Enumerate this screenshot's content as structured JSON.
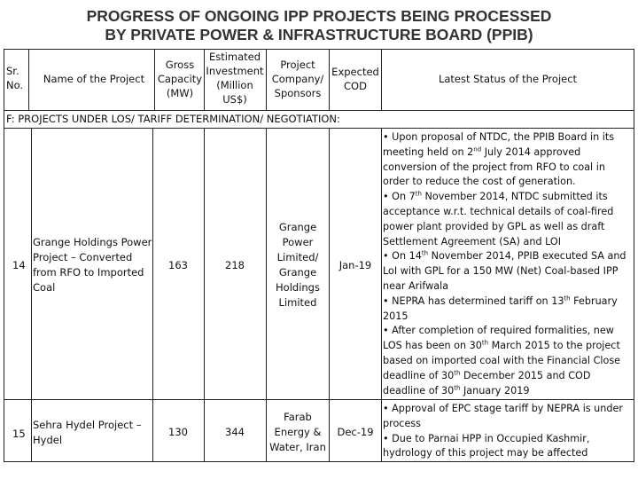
{
  "title": {
    "line1": "PROGRESS OF ONGOING IPP PROJECTS BEING PROCESSED",
    "line2": "BY PRIVATE POWER & INFRASTRUCTURE BOARD (PPIB)"
  },
  "headers": {
    "sr_no": "Sr. No.",
    "name": "Name of the Project",
    "capacity": "Gross Capacity (MW)",
    "investment": "Estimated Investment (Million US$)",
    "sponsors": "Project Company/ Sponsors",
    "cod": "Expected COD",
    "status": "Latest Status of the Project"
  },
  "section_label": "F: PROJECTS UNDER LOS/ TARIFF DETERMINATION/ NEGOTIATION:",
  "rows": [
    {
      "sr": "14",
      "name": "Grange Holdings Power Project – Converted from RFO to Imported Coal",
      "capacity": "163",
      "investment": "218",
      "sponsors": "Grange Power Limited/ Grange Holdings Limited",
      "cod": "Jan-19",
      "status": [
        "• Upon proposal of NTDC, the PPIB Board in its meeting held on 2nd July 2014 approved conversion of the project from RFO to coal in order to reduce the cost of generation.",
        "• On 7th November 2014, NTDC submitted its acceptance w.r.t. technical details of coal-fired power plant provided by GPL as well as draft Settlement Agreement (SA) and LOI",
        "• On 14th November 2014, PPIB executed SA and LoI with GPL for a 150 MW (Net) Coal-based IPP near Arifwala",
        "• NEPRA has determined tariff on 13th February 2015",
        "• After completion of required formalities, new LOS has been on 30th March 2015 to the project based on imported coal with the Financial Close deadline of 30th December 2015 and COD deadline of 30th January 2019"
      ]
    },
    {
      "sr": "15",
      "name": "Sehra Hydel Project – Hydel",
      "capacity": "130",
      "investment": "344",
      "sponsors": "Farab Energy & Water, Iran",
      "cod": "Dec-19",
      "status": [
        "• Approval of EPC stage tariff by NEPRA is under process",
        "• Due to Parnai HPP in Occupied Kashmir, hydrology of this project may be affected"
      ]
    }
  ]
}
